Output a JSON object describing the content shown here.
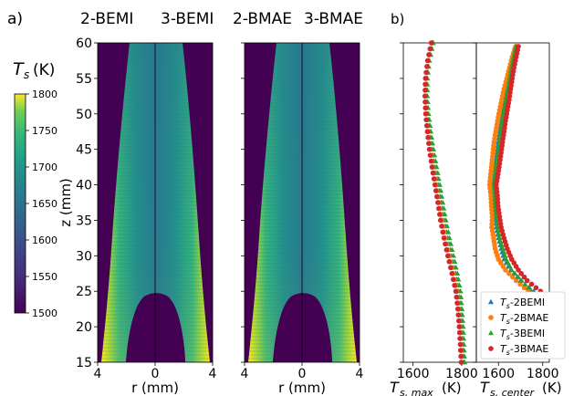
{
  "panel_labels": {
    "a": "a)",
    "b": "b)"
  },
  "colorbar": {
    "title": "T",
    "title_sub": "s",
    "title_unit": "(K)",
    "ticks": [
      "1800",
      "1750",
      "1700",
      "1650",
      "1600",
      "1550",
      "1500"
    ],
    "range": [
      1500,
      1800
    ]
  },
  "chart_data": [
    {
      "type": "heatmap",
      "panel": "a",
      "title_left": "2-BEMI",
      "title_right": "3-BEMI",
      "xlabel": "r (mm)",
      "ylabel": "z (mm)",
      "xticks": [
        "4",
        "0",
        "4"
      ],
      "yticks": [
        "60",
        "55",
        "50",
        "45",
        "40",
        "35",
        "30",
        "25",
        "20",
        "15"
      ],
      "xlim": [
        -4,
        4
      ],
      "ylim": [
        15,
        60
      ],
      "colormap": "viridis",
      "value_range": [
        1500,
        1800
      ]
    },
    {
      "type": "heatmap",
      "panel": "a",
      "title_left": "2-BMAE",
      "title_right": "3-BMAE",
      "xlabel": "r (mm)",
      "xticks": [
        "4",
        "0",
        "4"
      ],
      "xlim": [
        -4,
        4
      ],
      "ylim": [
        15,
        60
      ],
      "colormap": "viridis",
      "value_range": [
        1500,
        1800
      ]
    },
    {
      "type": "scatter",
      "panel": "b",
      "xlabel_main": "T",
      "xlabel_sub": "s, max",
      "xlabel_unit": "(K)",
      "xticks": [
        "1600",
        "1800"
      ],
      "xlim": [
        1560,
        1860
      ],
      "ylim": [
        15,
        60
      ],
      "z": [
        15,
        17.5,
        20,
        22.5,
        25,
        27.5,
        30,
        32.5,
        35,
        37.5,
        40,
        42.5,
        45,
        47.5,
        50,
        52.5,
        55,
        57.5,
        60
      ],
      "series": [
        {
          "name": "T_s-2BEMI",
          "color": "#1f77b4",
          "marker": "triangle",
          "values": [
            1808,
            1804,
            1800,
            1796,
            1788,
            1775,
            1758,
            1742,
            1728,
            1715,
            1703,
            1690,
            1678,
            1668,
            1660,
            1656,
            1657,
            1665,
            1681
          ]
        },
        {
          "name": "T_s-2BMAE",
          "color": "#ff7f0e",
          "marker": "circle",
          "values": [
            1800,
            1797,
            1793,
            1788,
            1780,
            1765,
            1748,
            1732,
            1718,
            1706,
            1694,
            1682,
            1671,
            1662,
            1655,
            1652,
            1654,
            1662,
            1678
          ]
        },
        {
          "name": "T_s-3BEMI",
          "color": "#2ca02c",
          "marker": "triangle",
          "values": [
            1812,
            1809,
            1806,
            1801,
            1795,
            1782,
            1766,
            1750,
            1735,
            1722,
            1710,
            1697,
            1684,
            1673,
            1664,
            1659,
            1659,
            1667,
            1683
          ]
        },
        {
          "name": "T_s-3BMAE",
          "color": "#d62728",
          "marker": "circle",
          "values": [
            1798,
            1794,
            1790,
            1784,
            1776,
            1760,
            1743,
            1727,
            1713,
            1702,
            1690,
            1678,
            1667,
            1659,
            1652,
            1649,
            1651,
            1660,
            1675
          ]
        }
      ]
    },
    {
      "type": "scatter",
      "panel": "b",
      "xlabel_main": "T",
      "xlabel_sub": "s, center",
      "xlabel_unit": "(K)",
      "xticks": [
        "1600",
        "1800"
      ],
      "xlim": [
        1500,
        1830
      ],
      "ylim": [
        15,
        60
      ],
      "legend_position": "lower-right",
      "z": [
        25,
        26.5,
        28,
        29.5,
        31,
        32.5,
        34,
        35.5,
        37,
        38.5,
        40,
        41.5,
        43,
        44.5,
        46,
        47.5,
        49,
        50.5,
        52,
        53.5,
        55,
        56.5,
        58,
        59.5
      ],
      "series": [
        {
          "name": "T_s-2BEMI",
          "color": "#1f77b4",
          "marker": "triangle",
          "values": [
            1760,
            1700,
            1655,
            1625,
            1612,
            1600,
            1590,
            1585,
            1578,
            1580,
            1575,
            1582,
            1585,
            1592,
            1598,
            1605,
            1612,
            1620,
            1628,
            1635,
            1645,
            1655,
            1663,
            1675
          ]
        },
        {
          "name": "T_s-2BMAE",
          "color": "#ff7f0e",
          "marker": "circle",
          "values": [
            1735,
            1680,
            1632,
            1600,
            1585,
            1578,
            1570,
            1572,
            1568,
            1566,
            1560,
            1565,
            1570,
            1575,
            1580,
            1588,
            1596,
            1605,
            1615,
            1625,
            1638,
            1650,
            1662,
            1678
          ]
        },
        {
          "name": "T_s-3BEMI",
          "color": "#2ca02c",
          "marker": "triangle",
          "values": [
            1750,
            1705,
            1660,
            1635,
            1620,
            1605,
            1596,
            1590,
            1585,
            1583,
            1580,
            1585,
            1590,
            1598,
            1604,
            1612,
            1618,
            1626,
            1634,
            1642,
            1650,
            1658,
            1668,
            1680
          ]
        },
        {
          "name": "T_s-3BMAE",
          "color": "#d62728",
          "marker": "circle",
          "values": [
            1790,
            1730,
            1690,
            1660,
            1640,
            1625,
            1612,
            1605,
            1598,
            1595,
            1590,
            1598,
            1605,
            1612,
            1618,
            1625,
            1632,
            1640,
            1648,
            1655,
            1662,
            1670,
            1680,
            1690
          ]
        }
      ]
    }
  ]
}
